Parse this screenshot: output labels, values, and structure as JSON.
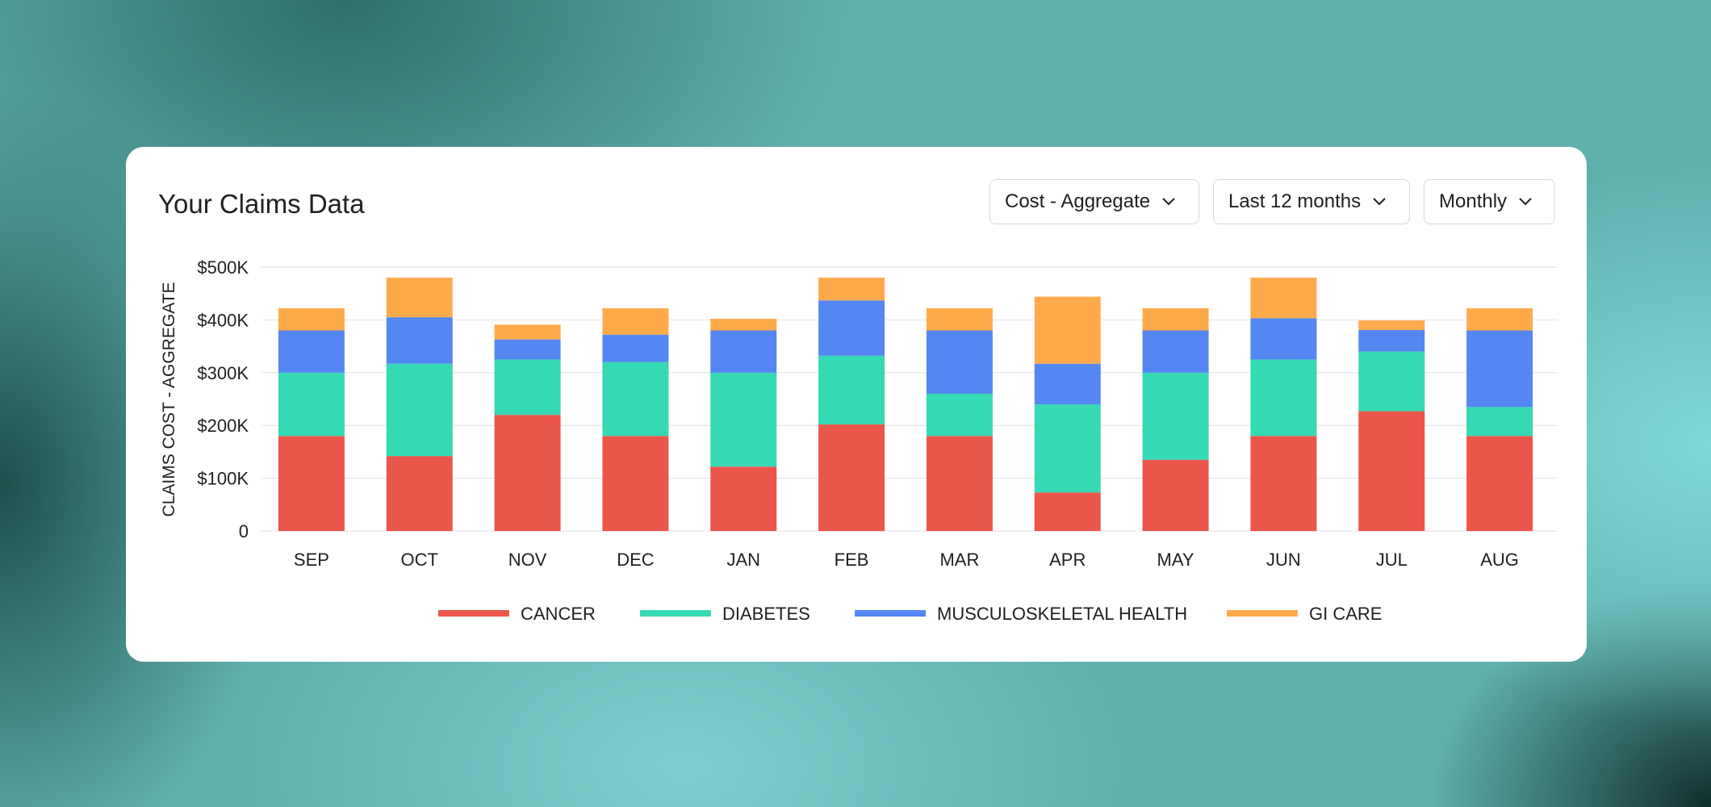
{
  "card": {
    "title": "Your Claims Data",
    "dropdowns": [
      {
        "value": "Cost - Aggregate",
        "icon": "chevron-down-icon"
      },
      {
        "value": "Last 12 months",
        "icon": "chevron-down-icon"
      },
      {
        "value": "Monthly",
        "icon": "chevron-down-icon"
      }
    ]
  },
  "colors": {
    "background": "#5fb0ad",
    "card": "#ffffff",
    "cancer": "#ea574a",
    "diabetes": "#35d9b4",
    "musculoskeletal": "#5487f2",
    "gi_care": "#ffaa4a",
    "grid": "#ececf0"
  },
  "chart_data": {
    "type": "bar",
    "stacked": true,
    "categories": [
      "SEP",
      "OCT",
      "NOV",
      "DEC",
      "JAN",
      "FEB",
      "MAR",
      "APR",
      "MAY",
      "JUN",
      "JUL",
      "AUG"
    ],
    "series": [
      {
        "name": "CANCER",
        "color": "#ea574a",
        "values": [
          180,
          142,
          220,
          180,
          122,
          202,
          180,
          73,
          135,
          180,
          227,
          180
        ]
      },
      {
        "name": "DIABETES",
        "color": "#35d9b4",
        "values": [
          120,
          175,
          105,
          140,
          178,
          130,
          80,
          167,
          165,
          145,
          113,
          55
        ]
      },
      {
        "name": "MUSCULOSKELETAL HEALTH",
        "color": "#5487f2",
        "values": [
          80,
          88,
          38,
          52,
          80,
          105,
          120,
          77,
          80,
          78,
          41,
          145
        ]
      },
      {
        "name": "GI CARE",
        "color": "#ffaa4a",
        "values": [
          42,
          75,
          28,
          50,
          22,
          43,
          42,
          127,
          42,
          77,
          18,
          42
        ]
      }
    ],
    "ylabel": "CLAIMS COST - AGGREGATE",
    "xlabel": "",
    "yticks": [
      "0",
      "$100K",
      "$200K",
      "$300K",
      "$400K",
      "$500K"
    ],
    "ylim": [
      0,
      500
    ],
    "units": "thousands of dollars",
    "grid": true,
    "legend_position": "bottom-center"
  }
}
